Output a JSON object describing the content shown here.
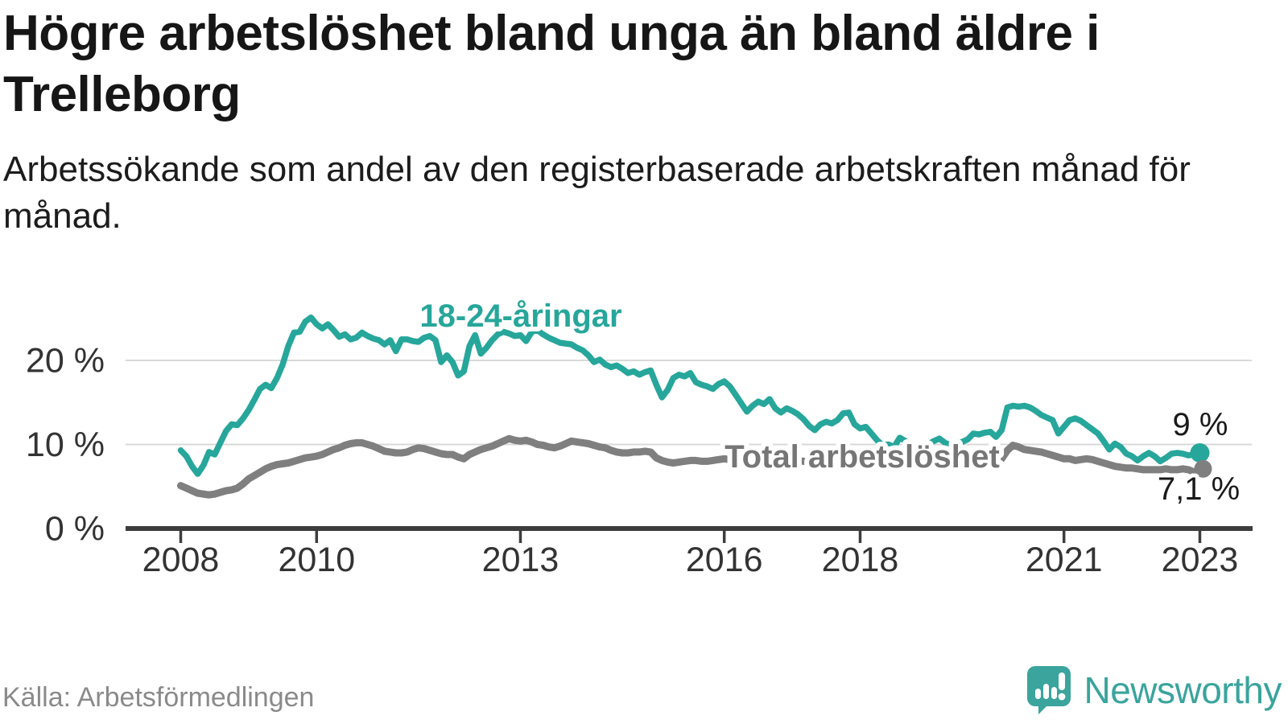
{
  "header": {
    "title": "Högre arbetslöshet bland unga än bland äldre i Trelleborg",
    "subtitle": "Arbetssökande som andel av den registerbaserade arbetskraften månad för månad."
  },
  "footer": {
    "source": "Källa: Arbetsförmedlingen",
    "brand": "Newsworthy"
  },
  "colors": {
    "accent_teal": "#27A69B",
    "line_gray": "#7F7F7F",
    "label_gray": "#767676",
    "title_text": "#161616",
    "axis_text": "#333333",
    "grid": "#D9D9D9",
    "axis_line": "#3D3D3D",
    "value_text": "#1A1A1A",
    "source_text": "#8A8A8A",
    "logo_teal": "#3AA49D"
  },
  "chart_data": {
    "type": "line",
    "title": "Högre arbetslöshet bland unga än bland äldre i Trelleborg",
    "subtitle": "Arbetssökande som andel av den registerbaserade arbetskraften månad för månad.",
    "source": "Källa: Arbetsförmedlingen",
    "unit": "%",
    "frequency": "monthly",
    "x_start": "2008-01",
    "x_end": "2023-01",
    "ylim": [
      0,
      27
    ],
    "grid": "horizontal-only",
    "legend_position": "inline-labels",
    "x_ticks": [
      {
        "year": 2008,
        "label": "2008"
      },
      {
        "year": 2010,
        "label": "2010"
      },
      {
        "year": 2013,
        "label": "2013"
      },
      {
        "year": 2016,
        "label": "2016"
      },
      {
        "year": 2018,
        "label": "2018"
      },
      {
        "year": 2021,
        "label": "2021"
      },
      {
        "year": 2023,
        "label": "2023"
      }
    ],
    "y_ticks": [
      {
        "value": 0,
        "label": "0 %"
      },
      {
        "value": 10,
        "label": "10 %"
      },
      {
        "value": 20,
        "label": "20 %"
      }
    ],
    "series": [
      {
        "name": "18-24-åringar",
        "color": "#27A69B",
        "end_label": "9 %",
        "values": [
          9.3,
          8.6,
          7.4,
          6.5,
          7.5,
          9.1,
          8.8,
          10.2,
          11.6,
          12.4,
          12.3,
          13.1,
          14.1,
          15.3,
          16.6,
          17.1,
          16.7,
          17.9,
          19.5,
          21.7,
          23.3,
          23.4,
          24.6,
          25.1,
          24.3,
          23.8,
          24.3,
          23.6,
          22.8,
          23.1,
          22.5,
          22.7,
          23.3,
          22.9,
          22.6,
          22.4,
          21.9,
          22.4,
          21.1,
          22.5,
          22.5,
          22.3,
          22.2,
          22.7,
          22.9,
          22.4,
          19.8,
          20.6,
          19.8,
          18.2,
          18.7,
          21.7,
          23.0,
          20.8,
          21.5,
          22.4,
          23.1,
          23.4,
          23.2,
          22.9,
          23.0,
          22.3,
          23.4,
          23.6,
          23.1,
          22.7,
          22.4,
          22.1,
          22.0,
          21.9,
          21.5,
          21.2,
          20.6,
          19.8,
          20.1,
          19.5,
          19.2,
          19.4,
          19.0,
          18.5,
          18.7,
          18.3,
          18.6,
          18.8,
          17.1,
          15.6,
          16.5,
          17.9,
          18.3,
          18.1,
          18.5,
          17.4,
          17.1,
          16.9,
          16.6,
          17.2,
          17.5,
          16.9,
          15.9,
          14.9,
          13.9,
          14.6,
          15.1,
          14.8,
          15.4,
          14.3,
          13.8,
          14.3,
          14.0,
          13.6,
          13.0,
          12.2,
          11.7,
          12.4,
          12.7,
          12.5,
          12.9,
          13.7,
          13.8,
          12.4,
          11.9,
          12.1,
          11.3,
          10.5,
          9.9,
          10.0,
          9.7,
          10.8,
          10.4,
          9.9,
          9.6,
          9.8,
          10.0,
          10.4,
          10.7,
          10.2,
          9.9,
          10.1,
          10.3,
          10.6,
          11.3,
          11.2,
          11.4,
          11.5,
          10.9,
          11.7,
          14.4,
          14.6,
          14.5,
          14.6,
          14.4,
          14.0,
          13.5,
          13.2,
          12.9,
          11.3,
          12.1,
          12.9,
          13.1,
          12.8,
          12.3,
          11.8,
          11.3,
          10.4,
          9.4,
          10.1,
          9.7,
          8.9,
          8.6,
          8.1,
          8.6,
          9.0,
          8.6,
          8.0,
          8.4,
          8.9,
          9.0,
          8.9,
          8.7,
          8.8,
          9.0
        ]
      },
      {
        "name": "Total arbetslöshet",
        "color": "#7F7F7F",
        "end_label": "7,1 %",
        "values": [
          5.1,
          4.8,
          4.5,
          4.2,
          4.1,
          4.0,
          4.1,
          4.3,
          4.5,
          4.6,
          4.8,
          5.3,
          5.9,
          6.3,
          6.7,
          7.1,
          7.4,
          7.6,
          7.7,
          7.8,
          8.0,
          8.2,
          8.4,
          8.5,
          8.6,
          8.8,
          9.1,
          9.4,
          9.6,
          9.9,
          10.1,
          10.2,
          10.2,
          10.0,
          9.8,
          9.5,
          9.2,
          9.1,
          9.0,
          9.0,
          9.1,
          9.4,
          9.6,
          9.5,
          9.3,
          9.1,
          8.9,
          8.8,
          8.8,
          8.5,
          8.3,
          8.8,
          9.1,
          9.4,
          9.6,
          9.8,
          10.1,
          10.4,
          10.7,
          10.5,
          10.4,
          10.5,
          10.3,
          10.0,
          9.9,
          9.7,
          9.6,
          9.8,
          10.1,
          10.4,
          10.3,
          10.2,
          10.1,
          9.9,
          9.7,
          9.6,
          9.3,
          9.1,
          9.0,
          9.0,
          9.1,
          9.1,
          9.2,
          9.1,
          8.4,
          8.1,
          7.9,
          7.8,
          7.9,
          8.0,
          8.1,
          8.1,
          8.0,
          8.0,
          8.1,
          8.2,
          8.3,
          8.2,
          8.1,
          8.0,
          7.9,
          8.0,
          8.1,
          8.2,
          8.2,
          8.1,
          8.0,
          8.1,
          8.2,
          8.1,
          8.0,
          7.9,
          7.8,
          7.9,
          8.0,
          8.1,
          8.1,
          8.0,
          7.9,
          8.0,
          8.0,
          7.9,
          7.8,
          7.7,
          7.6,
          7.7,
          7.8,
          7.9,
          7.8,
          7.7,
          7.6,
          7.7,
          7.7,
          7.6,
          7.5,
          7.5,
          7.4,
          7.5,
          7.6,
          7.7,
          7.7,
          7.8,
          7.9,
          8.0,
          8.1,
          8.3,
          9.3,
          9.9,
          9.7,
          9.4,
          9.3,
          9.2,
          9.1,
          8.9,
          8.7,
          8.5,
          8.3,
          8.3,
          8.1,
          8.2,
          8.3,
          8.2,
          8.0,
          7.8,
          7.6,
          7.4,
          7.3,
          7.2,
          7.2,
          7.1,
          7.0,
          7.0,
          7.0,
          7.0,
          7.1,
          7.0,
          7.0,
          7.1,
          7.0,
          6.7,
          7.1
        ]
      }
    ]
  }
}
